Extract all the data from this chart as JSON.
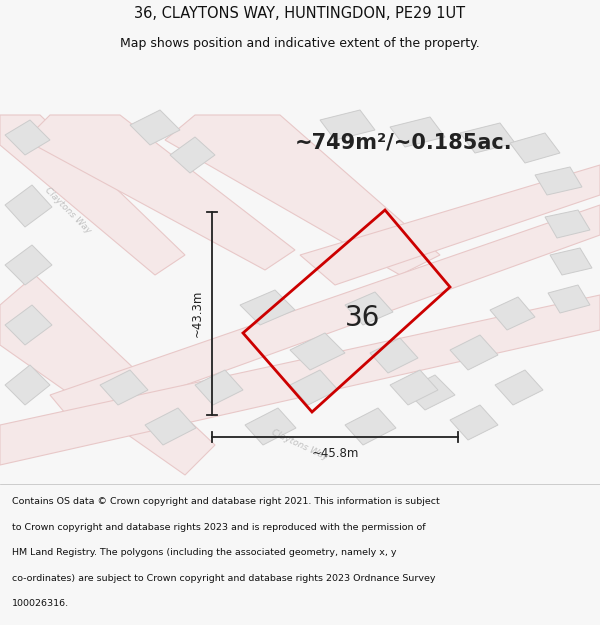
{
  "title_line1": "36, CLAYTONS WAY, HUNTINGDON, PE29 1UT",
  "title_line2": "Map shows position and indicative extent of the property.",
  "area_label": "~749m²/~0.185ac.",
  "width_label": "~45.8m",
  "height_label": "~43.3m",
  "number_label": "36",
  "footer_lines": [
    "Contains OS data © Crown copyright and database right 2021. This information is subject",
    "to Crown copyright and database rights 2023 and is reproduced with the permission of",
    "HM Land Registry. The polygons (including the associated geometry, namely x, y",
    "co-ordinates) are subject to Crown copyright and database rights 2023 Ordnance Survey",
    "100026316."
  ],
  "bg_color": "#f7f7f7",
  "map_bg_color": "#ffffff",
  "road_fill": "#f5e8e8",
  "road_edge": "#e8c8c8",
  "building_fill": "#e2e2e2",
  "building_edge": "#cccccc",
  "plot_edge_color": "#cc0000",
  "dim_color": "#222222",
  "title_color": "#111111",
  "footer_color": "#111111",
  "road_label_color": "#c0c0c0",
  "title_fontsize": 10.5,
  "subtitle_fontsize": 9,
  "area_fontsize": 15,
  "number_fontsize": 20,
  "dim_fontsize": 8.5,
  "footer_fontsize": 6.8,
  "road_label_fontsize": 6.5
}
